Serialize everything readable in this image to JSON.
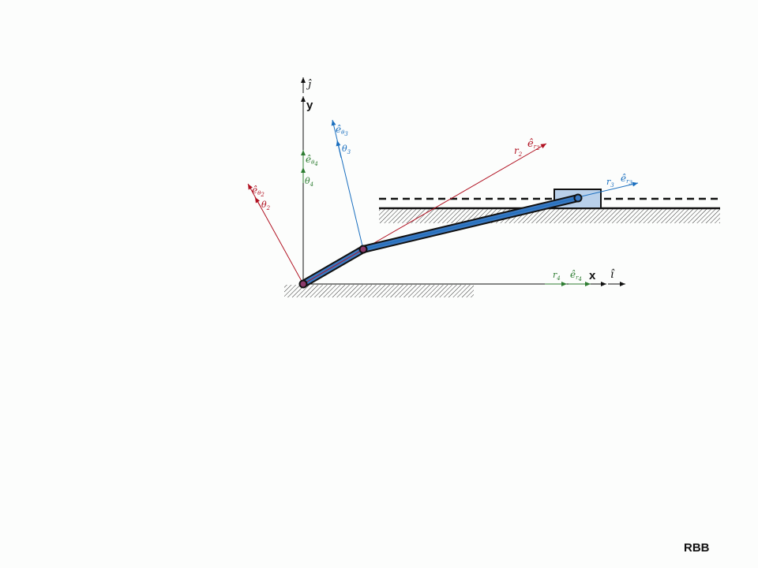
{
  "diagram": {
    "axis_x_label": "x",
    "axis_y_label": "y",
    "unit_i": "î",
    "unit_j": "ĵ",
    "e_hat": "ê",
    "theta": "θ",
    "r": "r",
    "index_2": "2",
    "index_3": "3",
    "index_4": "4",
    "colors": {
      "black": "#111111",
      "red": "#b01020",
      "blue": "#1a6fbf",
      "green": "#2e7d32",
      "link_fill": "#3a78c0",
      "slider_fill": "#b9d0ea"
    }
  },
  "footer": {
    "author": "RBB"
  }
}
